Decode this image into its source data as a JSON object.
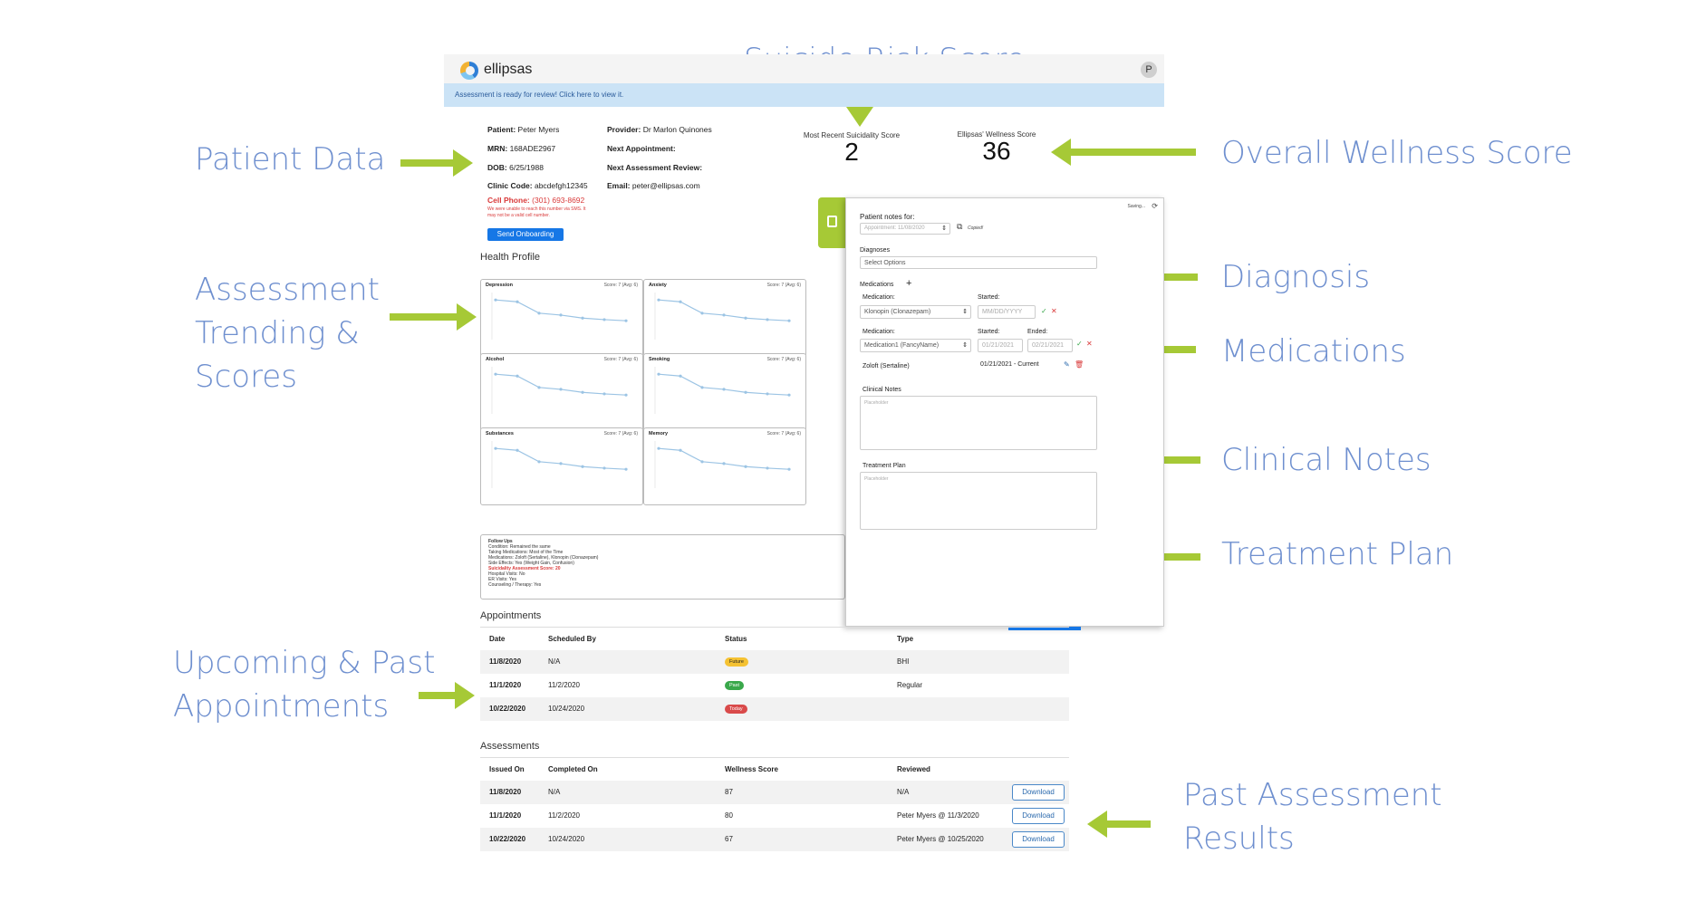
{
  "callouts": {
    "suicide_risk": "Suicide Risk Score",
    "patient_data": "Patient Data",
    "wellness": "Overall Wellness Score",
    "assessment_l1": "Assessment",
    "assessment_l2": "Trending &",
    "assessment_l3": "Scores",
    "diagnosis": "Diagnosis",
    "medications": "Medications",
    "clinical_notes": "Clinical Notes",
    "treatment_plan": "Treatment Plan",
    "appointments_l1": "Upcoming & Past",
    "appointments_l2": "Appointments",
    "past_results_l1": "Past Assessment",
    "past_results_l2": "Results"
  },
  "app": {
    "logo": "ellipsas",
    "avatar_letter": "P",
    "banner": "Assessment is ready for review! Click here to view it."
  },
  "patient": {
    "patient_label": "Patient:",
    "patient": "Peter Myers",
    "mrn_label": "MRN:",
    "mrn": "168ADE2967",
    "dob_label": "DOB:",
    "dob": "6/25/1988",
    "clinic_label": "Clinic Code:",
    "clinic": "abcdefgh12345",
    "cell_label": "Cell Phone:",
    "cell": "(301) 693-8692",
    "warn1": "We were unable to reach this number via SMS. It",
    "warn2": "may not be a valid cell number.",
    "provider_label": "Provider:",
    "provider": "Dr Marlon Quinones",
    "next_appt_label": "Next Appointment:",
    "next_review_label": "Next Assessment Review:",
    "email_label": "Email:",
    "email": "peter@ellipsas.com",
    "onboarding_button": "Send Onboarding"
  },
  "scores": {
    "suicidality_label": "Most Recent Suicidality Score",
    "suicidality": "2",
    "wellness_label": "Ellipsas' Wellness Score",
    "wellness": "36"
  },
  "health_profile": {
    "title": "Health Profile",
    "cards": [
      {
        "name": "Depression",
        "score": "Score: 7 (Avg: 6)"
      },
      {
        "name": "Anxiety",
        "score": "Score: 7 (Avg: 6)"
      },
      {
        "name": "Alcohol",
        "score": "Score: 7 (Avg: 6)"
      },
      {
        "name": "Smoking",
        "score": "Score: 7 (Avg: 6)"
      },
      {
        "name": "Substances",
        "score": "Score: 7 (Avg: 6)"
      },
      {
        "name": "Memory",
        "score": "Score: 7 (Avg: 6)"
      }
    ],
    "trend_values": [
      10,
      9.5,
      6.5,
      6,
      5.2,
      4.8,
      4.5
    ]
  },
  "followup": {
    "title": "Follow Ups",
    "lines": [
      "Condition: Remained the same",
      "Taking Medications: Most of the Time",
      "Medications: Zoloft (Sertaline), Klonopin (Clonazepam)",
      "Side Effects: Yes (Weight Gain, Confusion)"
    ],
    "risk_line": "Suicidality Assessment Score: 20",
    "lines2": [
      "Hospital Visits: No",
      "ER Visits: Yes",
      "Counseling / Therapy: Yes"
    ]
  },
  "panel": {
    "saving": "Saving...",
    "notes_for": "Patient notes for:",
    "appointment_select": "Appointment: 11/08/2020",
    "copied": "Copied!",
    "diagnoses_label": "Diagnoses",
    "diagnoses_placeholder": "Select Options",
    "medications_label": "Medications",
    "med1_label": "Medication:",
    "med1_started_label": "Started:",
    "med1_value": "Klonopin (Clonazepam)",
    "med1_date_placeholder": "MM/DD/YYYY",
    "med2_label": "Medication:",
    "med2_started_label": "Started:",
    "med2_ended_label": "Ended:",
    "med2_value": "Medication1 (FancyName)",
    "med2_start": "01/21/2021",
    "med2_end": "02/21/2021",
    "med3_name": "Zoloft (Sertaline)",
    "med3_range": "01/21/2021 - Current",
    "clinical_notes_label": "Clinical Notes",
    "treatment_plan_label": "Treatment Plan",
    "placeholder": "Placeholder"
  },
  "appointments": {
    "title": "Appointments",
    "headers": [
      "Date",
      "Scheduled By",
      "Status",
      "Type"
    ],
    "rows": [
      {
        "date": "11/8/2020",
        "by": "N/A",
        "status": "Future",
        "type": "BHI"
      },
      {
        "date": "11/1/2020",
        "by": "11/2/2020",
        "status": "Past",
        "type": "Regular"
      },
      {
        "date": "10/22/2020",
        "by": "10/24/2020",
        "status": "Today",
        "type": ""
      }
    ],
    "status_colors": {
      "Future": "#f5c232",
      "Past": "#3aa84b",
      "Today": "#d94a4a"
    }
  },
  "assessments": {
    "title": "Assessments",
    "headers": [
      "Issued On",
      "Completed On",
      "Wellness Score",
      "Reviewed"
    ],
    "rows": [
      {
        "issued": "11/8/2020",
        "completed": "N/A",
        "score": "87",
        "reviewed": "N/A",
        "action": "Download"
      },
      {
        "issued": "11/1/2020",
        "completed": "11/2/2020",
        "score": "80",
        "reviewed": "Peter Myers @ 11/3/2020",
        "action": "Download"
      },
      {
        "issued": "10/22/2020",
        "completed": "10/24/2020",
        "score": "67",
        "reviewed": "Peter Myers @ 10/25/2020",
        "action": "Download"
      }
    ]
  }
}
